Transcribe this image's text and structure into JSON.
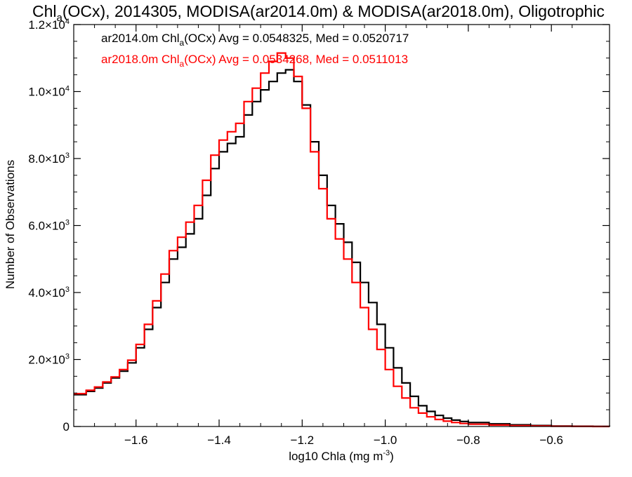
{
  "title": {
    "prefix": "Chl",
    "sub": "a",
    "rest": "(OCx), 2014305, MODISA(ar2014.0m) & MODISA(ar2018.0m), Oligotrophic"
  },
  "legend": [
    {
      "label_prefix": "ar2014.0m Chl",
      "sub": "a",
      "label_rest": "(OCx) Avg = 0.0548325, Med = 0.0520717",
      "color": "#000000"
    },
    {
      "label_prefix": "ar2018.0m Chl",
      "sub": "a",
      "label_rest": "(OCx) Avg = 0.0534268, Med = 0.0511013",
      "color": "#ff0000"
    }
  ],
  "axes": {
    "xlabel_prefix": "log10 Chla (mg m",
    "xlabel_sup": "-3",
    "xlabel_suffix": ")",
    "ylabel": "Number of Observations"
  },
  "chart_data": {
    "type": "line",
    "step": true,
    "xlim": [
      -1.75,
      -0.46
    ],
    "ylim": [
      0,
      12000
    ],
    "x_ticks": [
      {
        "value": -1.6,
        "label": "−1.6"
      },
      {
        "value": -1.4,
        "label": "−1.4"
      },
      {
        "value": -1.2,
        "label": "−1.2"
      },
      {
        "value": -1.0,
        "label": "−1.0"
      },
      {
        "value": -0.8,
        "label": "−0.8"
      },
      {
        "value": -0.6,
        "label": "−0.6"
      }
    ],
    "y_ticks": [
      {
        "value": 0,
        "mant": "0",
        "exp": ""
      },
      {
        "value": 2000,
        "mant": "2.0×10",
        "exp": "3"
      },
      {
        "value": 4000,
        "mant": "4.0×10",
        "exp": "3"
      },
      {
        "value": 6000,
        "mant": "6.0×10",
        "exp": "3"
      },
      {
        "value": 8000,
        "mant": "8.0×10",
        "exp": "3"
      },
      {
        "value": 10000,
        "mant": "1.0×10",
        "exp": "4"
      },
      {
        "value": 12000,
        "mant": "1.2×10",
        "exp": "4"
      }
    ],
    "series": [
      {
        "name": "ar2014.0m",
        "color": "#000000",
        "x": [
          -1.75,
          -1.72,
          -1.7,
          -1.68,
          -1.66,
          -1.64,
          -1.62,
          -1.6,
          -1.58,
          -1.56,
          -1.54,
          -1.52,
          -1.5,
          -1.48,
          -1.46,
          -1.44,
          -1.42,
          -1.4,
          -1.38,
          -1.36,
          -1.34,
          -1.32,
          -1.3,
          -1.28,
          -1.26,
          -1.24,
          -1.22,
          -1.2,
          -1.18,
          -1.16,
          -1.14,
          -1.12,
          -1.1,
          -1.08,
          -1.06,
          -1.04,
          -1.02,
          -1.0,
          -0.98,
          -0.96,
          -0.94,
          -0.92,
          -0.9,
          -0.88,
          -0.86,
          -0.84,
          -0.82,
          -0.8,
          -0.75,
          -0.7,
          -0.65,
          -0.6,
          -0.55,
          -0.5,
          -0.46
        ],
        "values": [
          950,
          1050,
          1150,
          1300,
          1450,
          1650,
          1900,
          2350,
          2900,
          3550,
          4300,
          5000,
          5350,
          5750,
          6200,
          6900,
          7700,
          8200,
          8450,
          8650,
          9300,
          9700,
          10050,
          10300,
          10550,
          10650,
          10300,
          9600,
          8500,
          7500,
          6600,
          6050,
          5500,
          4900,
          4300,
          3700,
          3050,
          2350,
          1750,
          1300,
          900,
          620,
          450,
          330,
          250,
          190,
          150,
          120,
          80,
          50,
          30,
          15,
          8,
          4,
          2
        ]
      },
      {
        "name": "ar2018.0m",
        "color": "#ff0000",
        "x": [
          -1.75,
          -1.72,
          -1.7,
          -1.68,
          -1.66,
          -1.64,
          -1.62,
          -1.6,
          -1.58,
          -1.56,
          -1.54,
          -1.52,
          -1.5,
          -1.48,
          -1.46,
          -1.44,
          -1.42,
          -1.4,
          -1.38,
          -1.36,
          -1.34,
          -1.32,
          -1.3,
          -1.28,
          -1.26,
          -1.24,
          -1.22,
          -1.2,
          -1.18,
          -1.16,
          -1.14,
          -1.12,
          -1.1,
          -1.08,
          -1.06,
          -1.04,
          -1.02,
          -1.0,
          -0.98,
          -0.96,
          -0.94,
          -0.92,
          -0.9,
          -0.88,
          -0.86,
          -0.84,
          -0.82,
          -0.8,
          -0.75,
          -0.7,
          -0.65,
          -0.6,
          -0.55,
          -0.5,
          -0.46
        ],
        "values": [
          980,
          1080,
          1180,
          1330,
          1480,
          1700,
          1980,
          2450,
          3050,
          3750,
          4550,
          5250,
          5650,
          6100,
          6600,
          7350,
          8100,
          8550,
          8800,
          9050,
          9700,
          10100,
          10550,
          10900,
          11150,
          11000,
          10450,
          9500,
          8200,
          7100,
          6200,
          5600,
          5000,
          4300,
          3550,
          2900,
          2300,
          1700,
          1200,
          850,
          560,
          400,
          290,
          210,
          160,
          120,
          90,
          70,
          45,
          25,
          12,
          6,
          3,
          1,
          0
        ]
      }
    ]
  }
}
